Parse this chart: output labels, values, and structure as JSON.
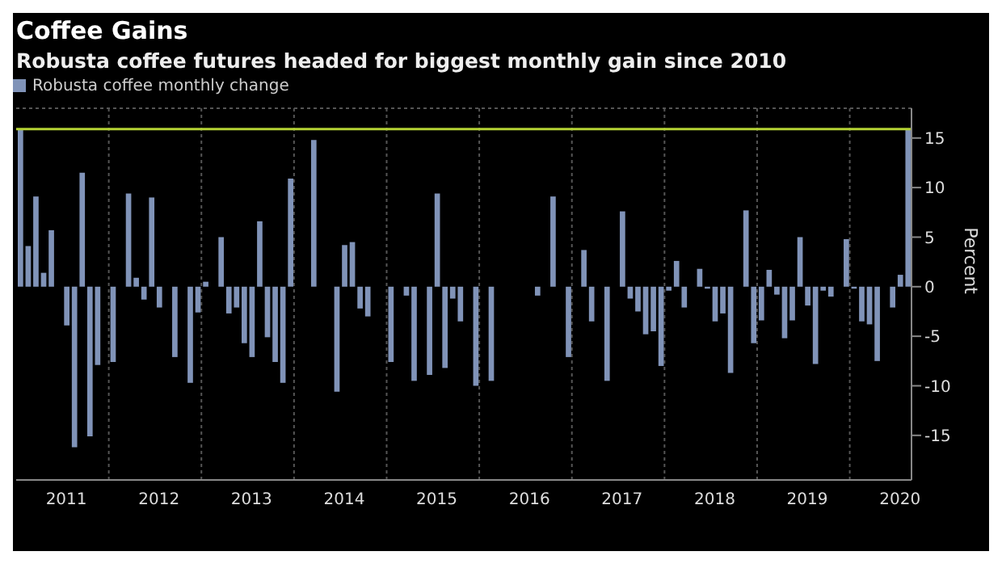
{
  "chart_data": {
    "type": "bar",
    "title": "Coffee Gains",
    "subtitle": "Robusta coffee futures headed for biggest monthly gain since 2010",
    "ylabel": "Percent",
    "categories": [
      null,
      null,
      null,
      null,
      null,
      null,
      "2011",
      null,
      null,
      null,
      null,
      null,
      null,
      null,
      null,
      null,
      null,
      null,
      "2012",
      null,
      null,
      null,
      null,
      null,
      null,
      null,
      null,
      null,
      null,
      null,
      "2013",
      null,
      null,
      null,
      null,
      null,
      null,
      null,
      null,
      null,
      null,
      null,
      "2014",
      null,
      null,
      null,
      null,
      null,
      null,
      null,
      null,
      null,
      null,
      null,
      "2015",
      null,
      null,
      null,
      null,
      null,
      null,
      null,
      null,
      null,
      null,
      null,
      "2016",
      null,
      null,
      null,
      null,
      null,
      null,
      null,
      null,
      null,
      null,
      null,
      "2017",
      null,
      null,
      null,
      null,
      null,
      null,
      null,
      null,
      null,
      null,
      null,
      "2018",
      null,
      null,
      null,
      null,
      null,
      null,
      null,
      null,
      null,
      null,
      null,
      "2019",
      null,
      null,
      null,
      null,
      null,
      null,
      null,
      null,
      null,
      null,
      null,
      "2020",
      null
    ],
    "series": [
      {
        "name": "Robusta coffee monthly change",
        "color": "#8093b8",
        "values": [
          15.9,
          4.1,
          9.1,
          1.4,
          5.7,
          null,
          -3.9,
          -16.2,
          11.5,
          -15.1,
          -7.9,
          null,
          -7.6,
          null,
          9.4,
          0.9,
          -1.3,
          9.0,
          -2.1,
          null,
          -7.1,
          null,
          -9.7,
          -2.6,
          0.5,
          null,
          5.0,
          -2.7,
          -2.1,
          -5.7,
          -7.1,
          6.6,
          -5.1,
          -7.6,
          -9.7,
          10.9,
          null,
          null,
          14.8,
          null,
          null,
          -10.6,
          4.2,
          4.5,
          -2.2,
          -3.0,
          null,
          null,
          -7.6,
          null,
          -0.9,
          -9.5,
          null,
          -8.9,
          9.4,
          -8.2,
          -1.2,
          -3.5,
          null,
          -10.0,
          null,
          -9.5,
          null,
          null,
          null,
          null,
          null,
          -0.9,
          null,
          9.1,
          null,
          -7.1,
          null,
          3.7,
          -3.5,
          null,
          -9.5,
          null,
          7.6,
          -1.2,
          -2.5,
          -4.8,
          -4.5,
          -8.0,
          -0.4,
          2.6,
          -2.1,
          null,
          1.8,
          -0.2,
          -3.5,
          -2.7,
          -8.7,
          null,
          7.7,
          -5.7,
          -3.4,
          1.7,
          -0.8,
          -5.2,
          -3.4,
          5.0,
          -1.9,
          -7.8,
          -0.4,
          -1.0,
          null,
          4.8,
          -0.2,
          -3.5,
          -3.8,
          -7.5,
          null,
          -2.1,
          1.2,
          15.9
        ]
      }
    ],
    "ylim": [
      -19.5,
      18
    ],
    "yticks": [
      -15,
      -10,
      -5,
      0,
      5,
      10,
      15
    ],
    "grid": true,
    "legend": "top left",
    "ref_lines": [
      {
        "axis": "y",
        "value": 15.9,
        "color": "#b5d334"
      }
    ]
  }
}
